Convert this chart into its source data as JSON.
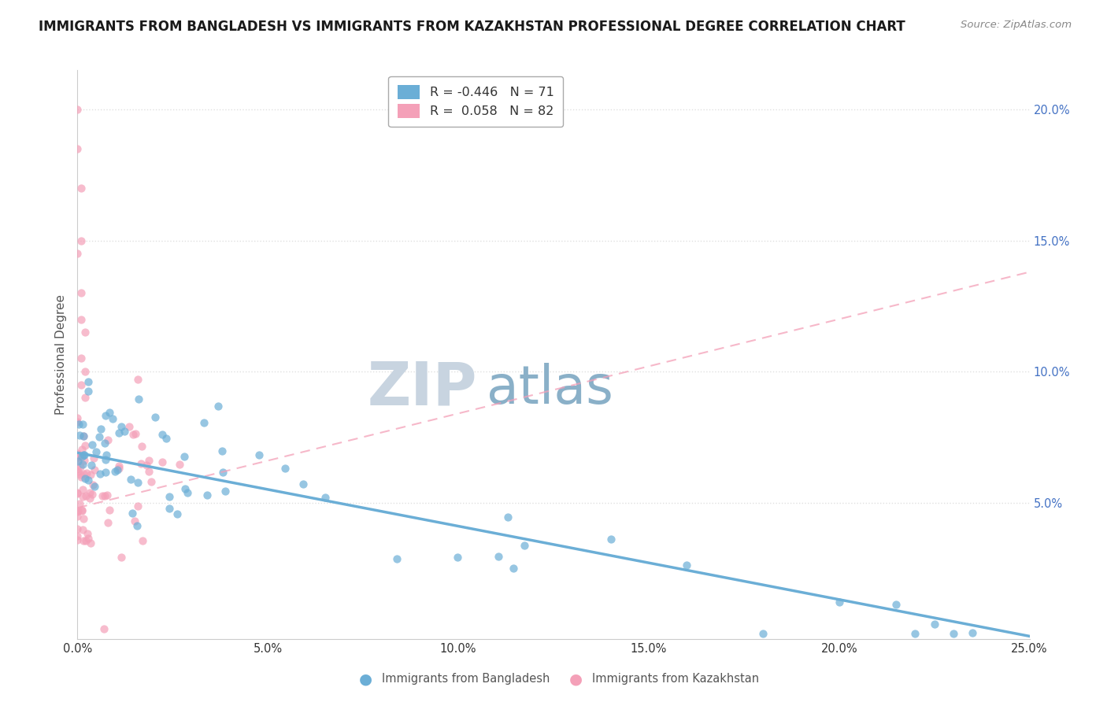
{
  "title": "IMMIGRANTS FROM BANGLADESH VS IMMIGRANTS FROM KAZAKHSTAN PROFESSIONAL DEGREE CORRELATION CHART",
  "source": "Source: ZipAtlas.com",
  "ylabel_left": "Professional Degree",
  "x_series1_label": "Immigrants from Bangladesh",
  "x_series2_label": "Immigrants from Kazakhstan",
  "series1_color": "#6baed6",
  "series2_color": "#f4a0b8",
  "series1_R": -0.446,
  "series1_N": 71,
  "series2_R": 0.058,
  "series2_N": 82,
  "xlim": [
    0.0,
    0.25
  ],
  "ylim": [
    -0.002,
    0.215
  ],
  "xticks": [
    0.0,
    0.05,
    0.1,
    0.15,
    0.2,
    0.25
  ],
  "xtick_labels": [
    "0.0%",
    "5.0%",
    "10.0%",
    "15.0%",
    "20.0%",
    "25.0%"
  ],
  "yticks": [
    0.05,
    0.1,
    0.15,
    0.2
  ],
  "ytick_labels_right": [
    "5.0%",
    "10.0%",
    "15.0%",
    "20.0%"
  ],
  "background_color": "#ffffff",
  "grid_color": "#e0e0e0",
  "watermark_text1": "ZIP",
  "watermark_text2": "atlas",
  "watermark_color1": "#c8d4e0",
  "watermark_color2": "#8ab0c8"
}
